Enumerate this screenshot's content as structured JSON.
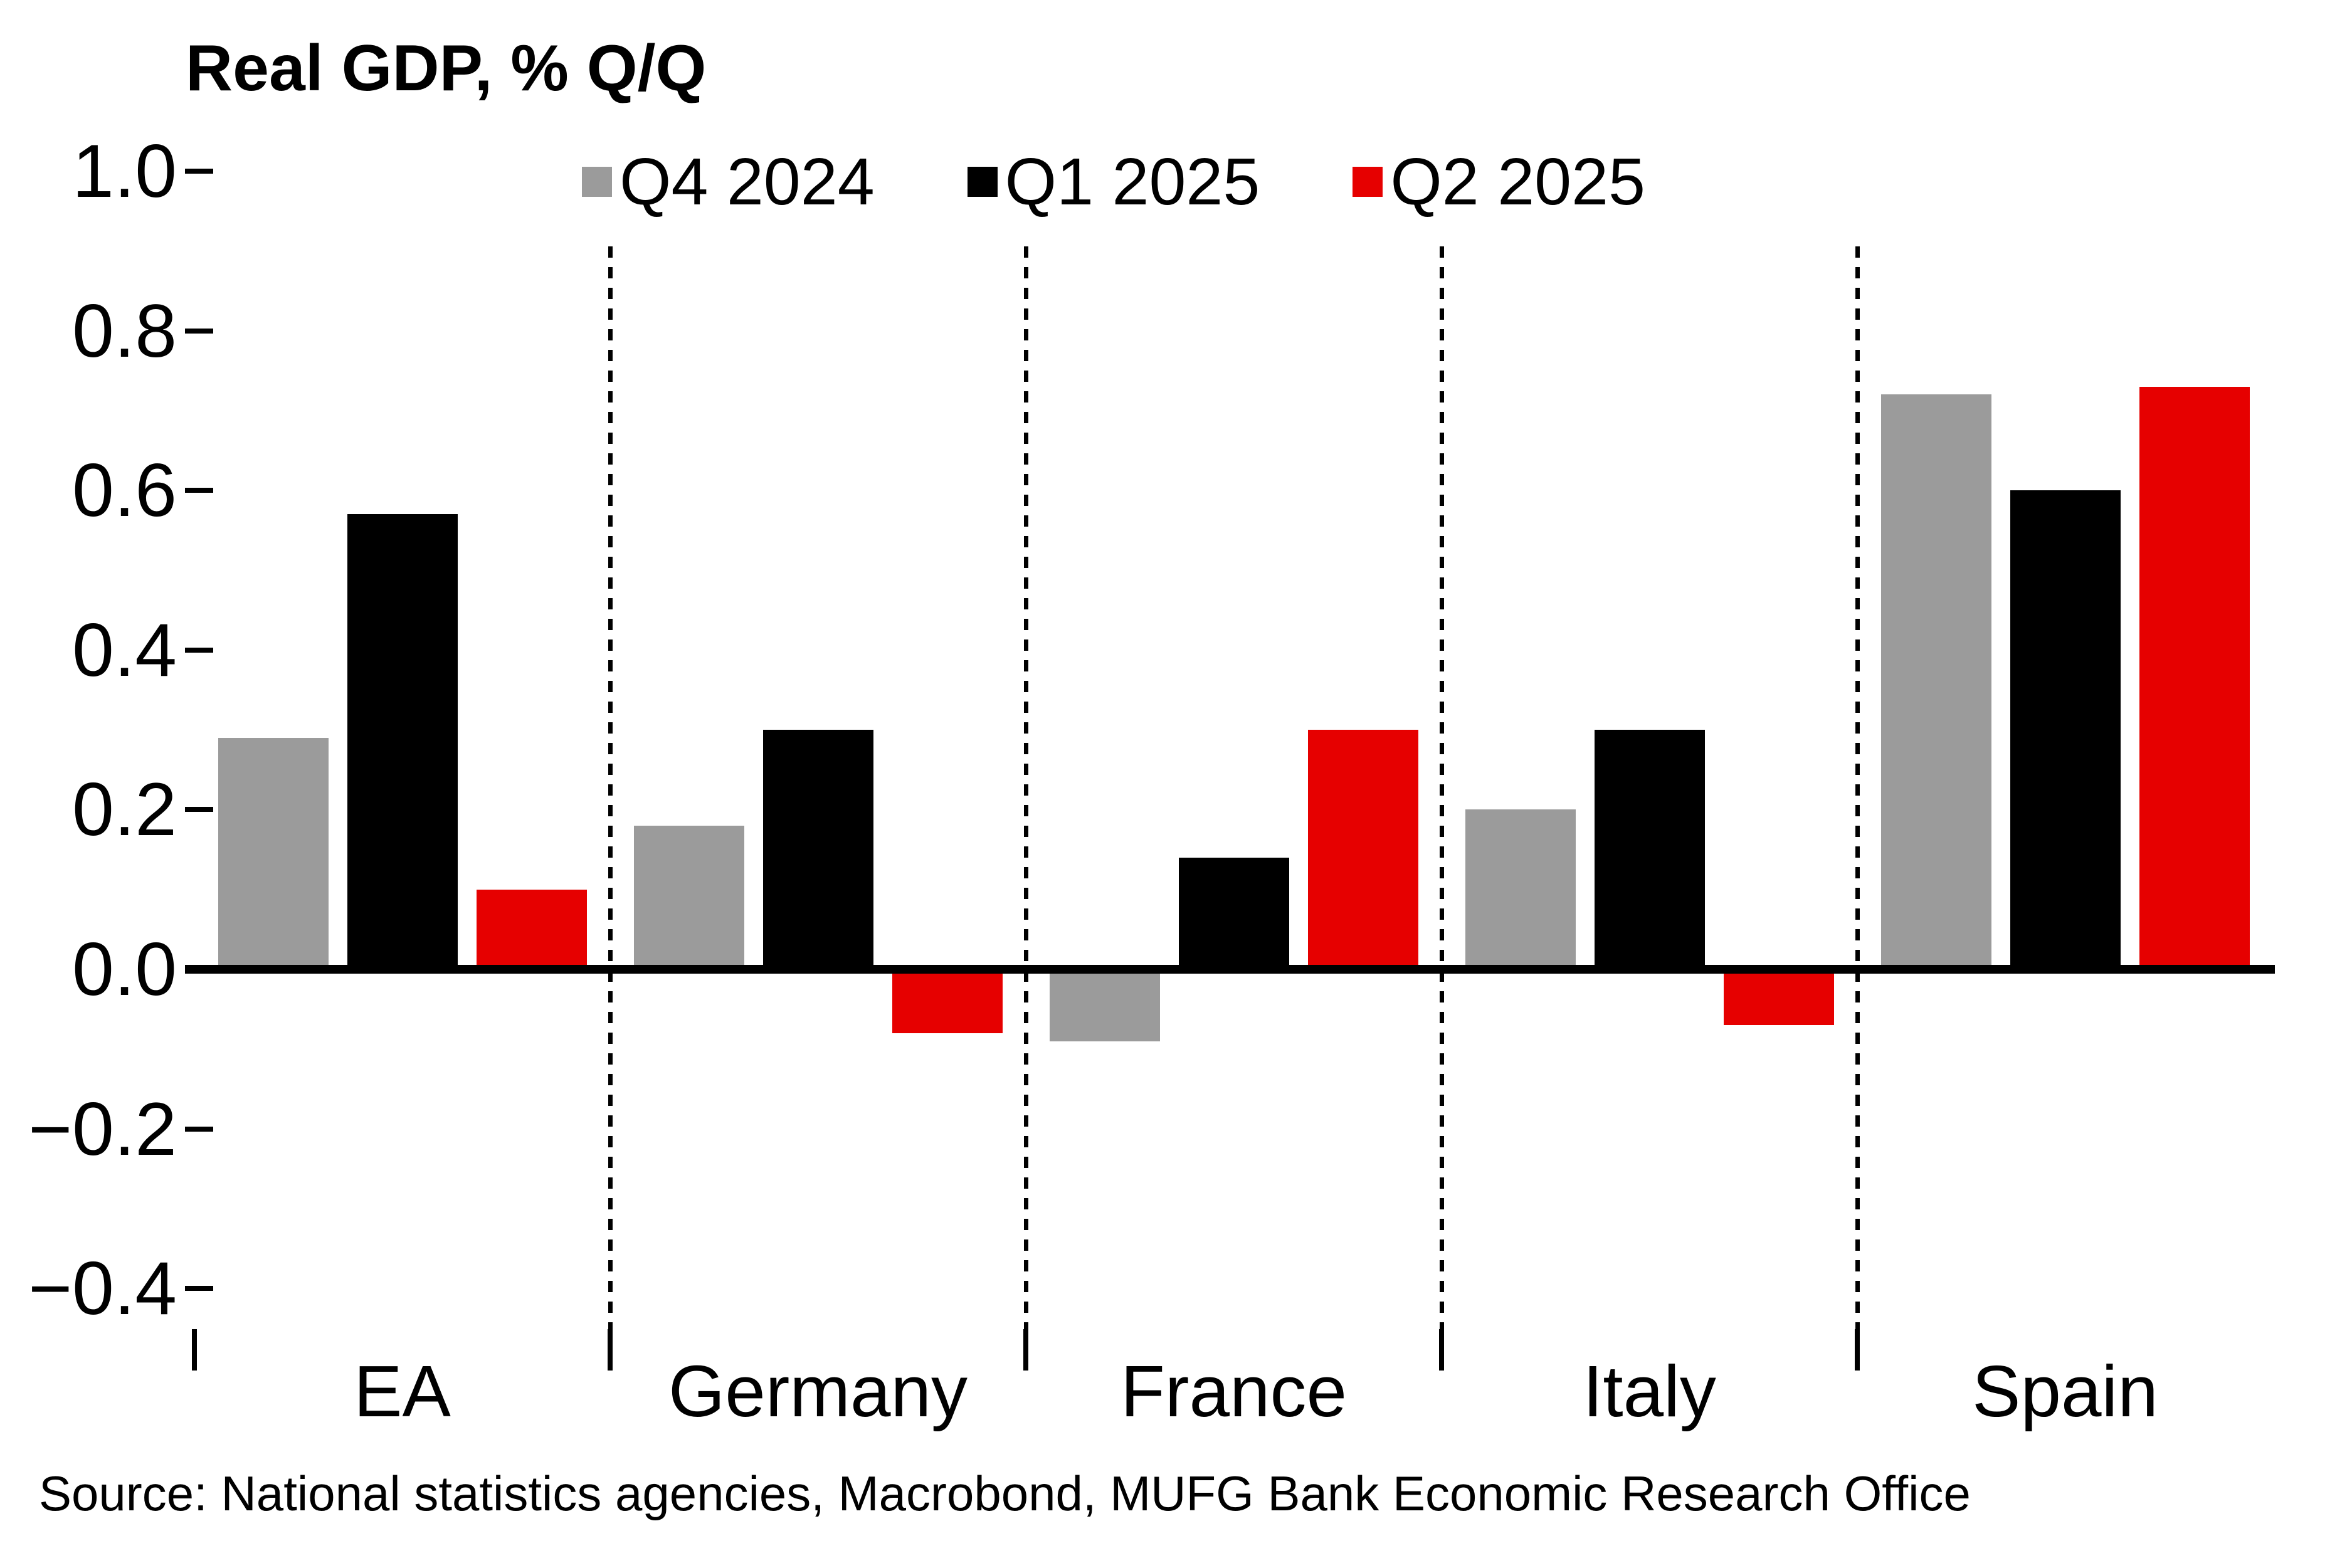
{
  "chart_data": {
    "type": "bar",
    "title": "Real GDP, % Q/Q",
    "categories": [
      "EA",
      "Germany",
      "France",
      "Italy",
      "Spain"
    ],
    "series": [
      {
        "name": "Q4 2024",
        "color": "#9B9B9B",
        "values": [
          0.29,
          0.18,
          -0.09,
          0.2,
          0.72
        ]
      },
      {
        "name": "Q1 2025",
        "color": "#000000",
        "values": [
          0.57,
          0.3,
          0.14,
          0.3,
          0.6
        ]
      },
      {
        "name": "Q2 2025",
        "color": "#E60000",
        "values": [
          0.1,
          -0.08,
          0.3,
          -0.07,
          0.73
        ]
      }
    ],
    "xlabel": "",
    "ylabel": "",
    "ylim": [
      -0.4,
      1.0
    ],
    "ytick_step": 0.2,
    "yticks": [
      {
        "value": 1.0,
        "label": "1.0"
      },
      {
        "value": 0.8,
        "label": "0.8"
      },
      {
        "value": 0.6,
        "label": "0.6"
      },
      {
        "value": 0.4,
        "label": "0.4"
      },
      {
        "value": 0.2,
        "label": "0.2"
      },
      {
        "value": 0.0,
        "label": "0.0"
      },
      {
        "value": -0.2,
        "label": "−0.2"
      },
      {
        "value": -0.4,
        "label": "−0.4"
      }
    ],
    "legend_position": "top",
    "grid": "dashed vertical separators between categories",
    "source": "Source: National statistics agencies, Macrobond, MUFG Bank Economic Research Office"
  }
}
